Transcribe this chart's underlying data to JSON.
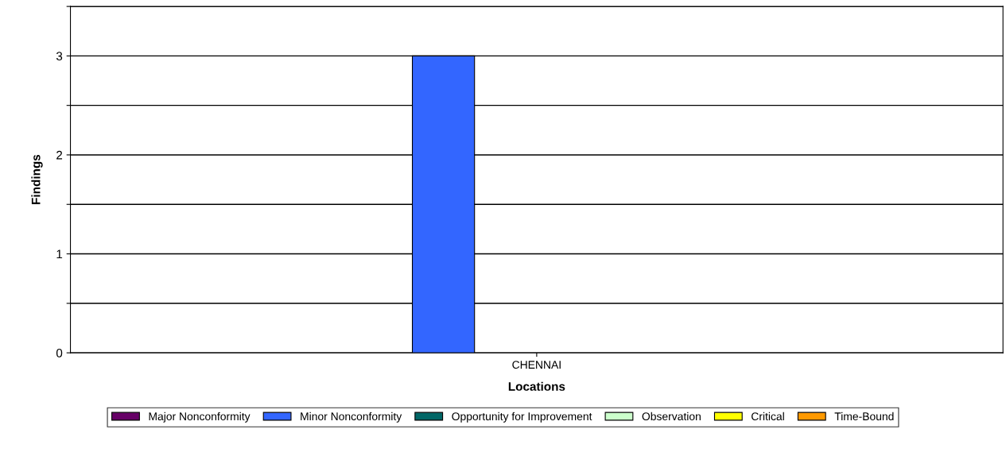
{
  "chart_data": {
    "type": "bar",
    "xlabel": "Locations",
    "ylabel": "Findings",
    "categories": [
      "CHENNAI"
    ],
    "series": [
      {
        "name": "Major Nonconformity",
        "color": "#660066",
        "values": [
          0
        ]
      },
      {
        "name": "Minor Nonconformity",
        "color": "#3366ff",
        "values": [
          3
        ]
      },
      {
        "name": "Opportunity for Improvement",
        "color": "#006666",
        "values": [
          0
        ]
      },
      {
        "name": "Observation",
        "color": "#ccffcc",
        "values": [
          0
        ]
      },
      {
        "name": "Critical",
        "color": "#ffff00",
        "values": [
          0
        ]
      },
      {
        "name": "Time-Bound",
        "color": "#ff9900",
        "values": [
          0
        ]
      }
    ],
    "ylim": [
      0,
      3.5
    ],
    "yticks": [
      0,
      {
        "value": 0.5,
        "label": null
      },
      1,
      {
        "value": 1.5,
        "label": null
      },
      2,
      {
        "value": 2.5,
        "label": null
      },
      3,
      {
        "value": 3.5,
        "label": null
      }
    ],
    "grid": "y",
    "legend": "bottom"
  }
}
